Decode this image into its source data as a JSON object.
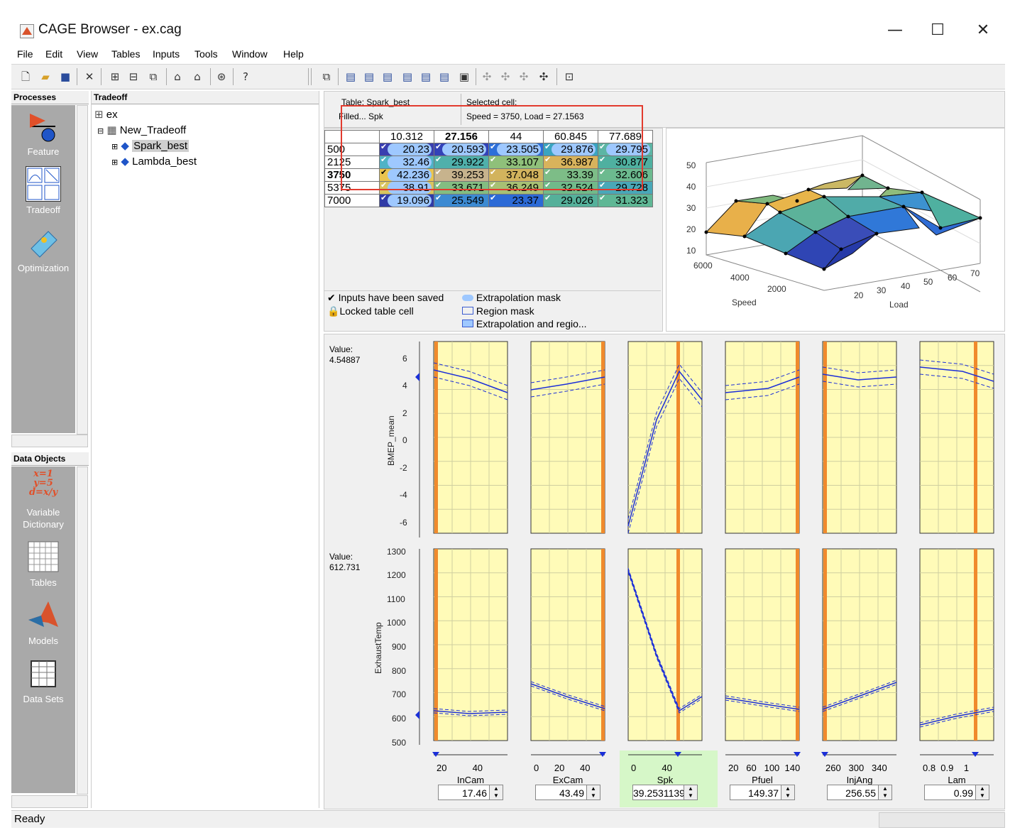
{
  "window": {
    "title": "CAGE Browser - ex.cag",
    "minimize": "—",
    "maximize": "☐",
    "close": "✕"
  },
  "menu": [
    "File",
    "Edit",
    "View",
    "Tables",
    "Inputs",
    "Tools",
    "Window",
    "Help"
  ],
  "panels": {
    "processes": "Processes",
    "tradeoff": "Tradeoff",
    "data_objects": "Data Objects"
  },
  "processes": [
    {
      "label": "Feature",
      "icon": "feature-icon"
    },
    {
      "label": "Tradeoff",
      "icon": "tradeoff-icon"
    },
    {
      "label": "Optimization",
      "icon": "optimization-icon"
    }
  ],
  "data_objects": [
    {
      "label": "Variable Dictionary",
      "icon": "variable-dictionary-icon"
    },
    {
      "label": "Tables",
      "icon": "tables-icon"
    },
    {
      "label": "Models",
      "icon": "models-icon"
    },
    {
      "label": "Data Sets",
      "icon": "data-sets-icon"
    }
  ],
  "tree": {
    "root": "ex",
    "tradeoff": "New_Tradeoff",
    "tables": [
      "Spark_best",
      "Lambda_best"
    ]
  },
  "table_info": {
    "table_label": "Table: Spark_best",
    "filled_label": "Filled...  Spk",
    "selected_label": "Selected cell:",
    "selected_value": "Speed = 3750, Load = 27.1563"
  },
  "grid": {
    "columns": [
      "10.312",
      "27.156",
      "44",
      "60.845",
      "77.689"
    ],
    "rows": [
      {
        "label": "500",
        "values": [
          "20.23",
          "20.593",
          "23.505",
          "29.876",
          "29.795"
        ],
        "colors": [
          "#3a3fb0",
          "#3342b8",
          "#2d6fd8",
          "#3aa4c0",
          "#5cb5a4"
        ]
      },
      {
        "label": "2125",
        "values": [
          "32.46",
          "29.922",
          "33.107",
          "36.987",
          "30.877"
        ],
        "colors": [
          "#4fb3c6",
          "#4fb0ab",
          "#8fc07a",
          "#d8b35c",
          "#4fb0a0"
        ]
      },
      {
        "label": "3750",
        "values": [
          "42.236",
          "39.253",
          "37.048",
          "33.39",
          "32.606"
        ],
        "colors": [
          "#e9c44e",
          "#c7b38d",
          "#d2b35d",
          "#7dbd87",
          "#6cba8f"
        ]
      },
      {
        "label": "5375",
        "values": [
          "38.91",
          "33.671",
          "36.249",
          "32.524",
          "29.728"
        ],
        "colors": [
          "#d8c45f",
          "#83bd82",
          "#a7c074",
          "#70ba8a",
          "#49a8b8"
        ]
      },
      {
        "label": "7000",
        "values": [
          "19.096",
          "25.549",
          "23.37",
          "29.026",
          "31.323"
        ],
        "colors": [
          "#2f3aa6",
          "#3c8ad2",
          "#2c6ad6",
          "#55b09a",
          "#5fb795"
        ]
      }
    ]
  },
  "legend": {
    "saved": "Inputs have been saved",
    "locked": "Locked table cell",
    "extrap": "Extrapolation mask",
    "region": "Region mask",
    "both": "Extrapolation and regio..."
  },
  "surface": {
    "z_ticks": [
      "50",
      "40",
      "30",
      "20",
      "10"
    ],
    "speed_ticks": [
      "6000",
      "4000",
      "2000"
    ],
    "load_ticks": [
      "20",
      "30",
      "40",
      "50",
      "60",
      "70"
    ],
    "xlabel": "Speed",
    "ylabel": "Load"
  },
  "plots": {
    "top": {
      "value_label": "Value:",
      "value": "4.54887",
      "ylabel": "BMEP_mean",
      "yticks": [
        "6",
        "4",
        "2",
        "0",
        "-2",
        "-4",
        "-6"
      ]
    },
    "bottom": {
      "value_label": "Value:",
      "value": "612.731",
      "ylabel": "ExhaustTemp",
      "yticks": [
        "1300",
        "1200",
        "1100",
        "1000",
        "900",
        "800",
        "700",
        "600",
        "500"
      ]
    }
  },
  "inputs": [
    {
      "name": "InCam",
      "ticks": "20          40",
      "value": "17.46"
    },
    {
      "name": "ExCam",
      "ticks": "0      20      40",
      "value": "43.49"
    },
    {
      "name": "Spk",
      "ticks": "0          40",
      "value": "39.2531139"
    },
    {
      "name": "Pfuel",
      "ticks": "20   60   100  140",
      "value": "149.37"
    },
    {
      "name": "InjAng",
      "ticks": "260   300   340",
      "value": "256.55"
    },
    {
      "name": "Lam",
      "ticks": "0.8  0.9    1",
      "value": "0.99"
    }
  ],
  "status": "Ready"
}
